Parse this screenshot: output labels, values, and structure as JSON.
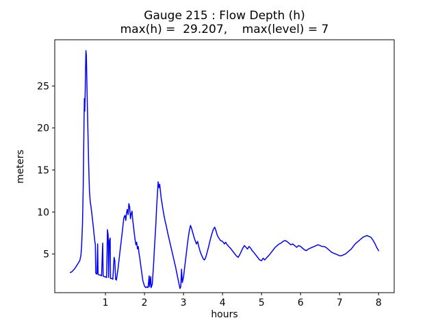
{
  "title": "Gauge 215 : Flow Depth (h)",
  "subtitle": "max(h) =  29.207,    max(level) = 7",
  "chart_data": {
    "type": "line",
    "title": "Gauge 215 : Flow Depth (h)",
    "subtitle": "max(h) =  29.207,    max(level) = 7",
    "xlabel": "hours",
    "ylabel": "meters",
    "max_h": 29.207,
    "max_level": 7,
    "xlim": [
      -0.3,
      8.4
    ],
    "ylim": [
      0.4,
      30.5
    ],
    "xticks": [
      1,
      2,
      3,
      4,
      5,
      6,
      7,
      8
    ],
    "yticks": [
      5,
      10,
      15,
      20,
      25
    ],
    "grid": false,
    "legend": "none",
    "line_color": "#0000ff",
    "axes_color": "#000000",
    "series": [
      {
        "name": "h",
        "color": "#0000ff",
        "points": [
          [
            0.1,
            2.8
          ],
          [
            0.14,
            2.9
          ],
          [
            0.18,
            3.1
          ],
          [
            0.22,
            3.3
          ],
          [
            0.26,
            3.6
          ],
          [
            0.3,
            3.9
          ],
          [
            0.34,
            4.2
          ],
          [
            0.37,
            4.8
          ],
          [
            0.39,
            6.0
          ],
          [
            0.41,
            8.5
          ],
          [
            0.43,
            13.0
          ],
          [
            0.44,
            17.0
          ],
          [
            0.45,
            21.0
          ],
          [
            0.46,
            23.5
          ],
          [
            0.47,
            22.0
          ],
          [
            0.48,
            24.5
          ],
          [
            0.49,
            27.0
          ],
          [
            0.5,
            29.207
          ],
          [
            0.51,
            28.6
          ],
          [
            0.52,
            26.5
          ],
          [
            0.53,
            24.0
          ],
          [
            0.55,
            19.5
          ],
          [
            0.57,
            15.5
          ],
          [
            0.59,
            12.5
          ],
          [
            0.61,
            11.2
          ],
          [
            0.63,
            10.6
          ],
          [
            0.65,
            9.8
          ],
          [
            0.67,
            9.0
          ],
          [
            0.69,
            8.2
          ],
          [
            0.71,
            7.2
          ],
          [
            0.73,
            6.4
          ],
          [
            0.74,
            6.2
          ],
          [
            0.75,
            2.7
          ],
          [
            0.78,
            2.6
          ],
          [
            0.8,
            6.2
          ],
          [
            0.81,
            2.6
          ],
          [
            0.84,
            2.5
          ],
          [
            0.87,
            2.5
          ],
          [
            0.9,
            2.4
          ],
          [
            0.93,
            6.3
          ],
          [
            0.94,
            2.4
          ],
          [
            0.97,
            2.3
          ],
          [
            1.0,
            2.3
          ],
          [
            1.03,
            2.2
          ],
          [
            1.05,
            7.9
          ],
          [
            1.07,
            7.2
          ],
          [
            1.08,
            2.2
          ],
          [
            1.1,
            6.6
          ],
          [
            1.12,
            6.9
          ],
          [
            1.13,
            2.1
          ],
          [
            1.16,
            2.1
          ],
          [
            1.19,
            2.0
          ],
          [
            1.22,
            4.6
          ],
          [
            1.24,
            4.2
          ],
          [
            1.26,
            2.0
          ],
          [
            1.28,
            1.9
          ],
          [
            1.32,
            3.2
          ],
          [
            1.36,
            4.8
          ],
          [
            1.4,
            6.4
          ],
          [
            1.44,
            8.0
          ],
          [
            1.47,
            9.3
          ],
          [
            1.5,
            9.6
          ],
          [
            1.52,
            9.0
          ],
          [
            1.54,
            9.9
          ],
          [
            1.56,
            10.3
          ],
          [
            1.58,
            9.7
          ],
          [
            1.6,
            11.0
          ],
          [
            1.62,
            10.6
          ],
          [
            1.64,
            9.2
          ],
          [
            1.66,
            9.8
          ],
          [
            1.68,
            10.1
          ],
          [
            1.7,
            9.0
          ],
          [
            1.72,
            8.2
          ],
          [
            1.74,
            7.4
          ],
          [
            1.76,
            6.7
          ],
          [
            1.78,
            6.1
          ],
          [
            1.8,
            6.4
          ],
          [
            1.82,
            5.6
          ],
          [
            1.84,
            5.9
          ],
          [
            1.86,
            5.1
          ],
          [
            1.88,
            4.5
          ],
          [
            1.9,
            3.8
          ],
          [
            1.93,
            2.8
          ],
          [
            1.96,
            1.8
          ],
          [
            2.0,
            1.2
          ],
          [
            2.03,
            1.0
          ],
          [
            2.06,
            1.1
          ],
          [
            2.09,
            1.0
          ],
          [
            2.12,
            2.4
          ],
          [
            2.13,
            1.1
          ],
          [
            2.16,
            2.3
          ],
          [
            2.17,
            1.0
          ],
          [
            2.2,
            1.4
          ],
          [
            2.23,
            3.5
          ],
          [
            2.26,
            6.0
          ],
          [
            2.29,
            8.5
          ],
          [
            2.31,
            10.5
          ],
          [
            2.33,
            12.0
          ],
          [
            2.35,
            13.6
          ],
          [
            2.37,
            12.9
          ],
          [
            2.39,
            13.3
          ],
          [
            2.41,
            12.4
          ],
          [
            2.43,
            11.6
          ],
          [
            2.45,
            11.0
          ],
          [
            2.47,
            10.4
          ],
          [
            2.5,
            9.6
          ],
          [
            2.53,
            8.9
          ],
          [
            2.56,
            8.3
          ],
          [
            2.59,
            7.6
          ],
          [
            2.62,
            7.0
          ],
          [
            2.65,
            6.4
          ],
          [
            2.68,
            5.8
          ],
          [
            2.71,
            5.2
          ],
          [
            2.74,
            4.6
          ],
          [
            2.77,
            4.0
          ],
          [
            2.8,
            3.4
          ],
          [
            2.83,
            2.7
          ],
          [
            2.86,
            2.0
          ],
          [
            2.89,
            1.3
          ],
          [
            2.91,
            0.9
          ],
          [
            2.93,
            1.1
          ],
          [
            2.95,
            3.2
          ],
          [
            2.97,
            1.6
          ],
          [
            3.0,
            2.2
          ],
          [
            3.03,
            3.4
          ],
          [
            3.06,
            4.6
          ],
          [
            3.09,
            5.8
          ],
          [
            3.12,
            6.9
          ],
          [
            3.15,
            7.8
          ],
          [
            3.18,
            8.4
          ],
          [
            3.21,
            8.0
          ],
          [
            3.24,
            7.5
          ],
          [
            3.27,
            7.0
          ],
          [
            3.3,
            6.6
          ],
          [
            3.33,
            6.2
          ],
          [
            3.36,
            6.5
          ],
          [
            3.39,
            5.9
          ],
          [
            3.42,
            5.4
          ],
          [
            3.45,
            5.0
          ],
          [
            3.48,
            4.7
          ],
          [
            3.51,
            4.4
          ],
          [
            3.54,
            4.3
          ],
          [
            3.57,
            4.6
          ],
          [
            3.6,
            5.1
          ],
          [
            3.64,
            5.8
          ],
          [
            3.68,
            6.6
          ],
          [
            3.72,
            7.3
          ],
          [
            3.76,
            7.9
          ],
          [
            3.8,
            8.2
          ],
          [
            3.83,
            7.8
          ],
          [
            3.86,
            7.3
          ],
          [
            3.89,
            7.0
          ],
          [
            3.92,
            6.8
          ],
          [
            3.95,
            6.6
          ],
          [
            4.0,
            6.5
          ],
          [
            4.05,
            6.2
          ],
          [
            4.08,
            6.4
          ],
          [
            4.12,
            6.1
          ],
          [
            4.16,
            5.9
          ],
          [
            4.2,
            5.7
          ],
          [
            4.25,
            5.4
          ],
          [
            4.3,
            5.1
          ],
          [
            4.35,
            4.8
          ],
          [
            4.4,
            4.6
          ],
          [
            4.44,
            4.9
          ],
          [
            4.48,
            5.3
          ],
          [
            4.52,
            5.7
          ],
          [
            4.56,
            6.0
          ],
          [
            4.6,
            5.8
          ],
          [
            4.64,
            5.6
          ],
          [
            4.68,
            5.9
          ],
          [
            4.72,
            5.7
          ],
          [
            4.76,
            5.4
          ],
          [
            4.8,
            5.2
          ],
          [
            4.85,
            4.9
          ],
          [
            4.9,
            4.6
          ],
          [
            4.95,
            4.3
          ],
          [
            5.0,
            4.2
          ],
          [
            5.04,
            4.5
          ],
          [
            5.08,
            4.3
          ],
          [
            5.12,
            4.5
          ],
          [
            5.16,
            4.7
          ],
          [
            5.2,
            4.9
          ],
          [
            5.25,
            5.2
          ],
          [
            5.3,
            5.5
          ],
          [
            5.35,
            5.8
          ],
          [
            5.4,
            6.0
          ],
          [
            5.45,
            6.2
          ],
          [
            5.5,
            6.3
          ],
          [
            5.55,
            6.5
          ],
          [
            5.6,
            6.6
          ],
          [
            5.65,
            6.5
          ],
          [
            5.7,
            6.3
          ],
          [
            5.75,
            6.1
          ],
          [
            5.8,
            6.2
          ],
          [
            5.85,
            6.0
          ],
          [
            5.9,
            5.8
          ],
          [
            5.95,
            6.0
          ],
          [
            6.0,
            5.9
          ],
          [
            6.05,
            5.7
          ],
          [
            6.1,
            5.5
          ],
          [
            6.15,
            5.4
          ],
          [
            6.2,
            5.6
          ],
          [
            6.25,
            5.7
          ],
          [
            6.3,
            5.8
          ],
          [
            6.35,
            5.9
          ],
          [
            6.4,
            6.0
          ],
          [
            6.45,
            6.1
          ],
          [
            6.5,
            6.0
          ],
          [
            6.55,
            5.9
          ],
          [
            6.6,
            5.9
          ],
          [
            6.65,
            5.8
          ],
          [
            6.7,
            5.6
          ],
          [
            6.75,
            5.4
          ],
          [
            6.8,
            5.2
          ],
          [
            6.85,
            5.1
          ],
          [
            6.9,
            5.0
          ],
          [
            6.95,
            4.9
          ],
          [
            7.0,
            4.8
          ],
          [
            7.05,
            4.8
          ],
          [
            7.1,
            4.9
          ],
          [
            7.15,
            5.0
          ],
          [
            7.2,
            5.2
          ],
          [
            7.25,
            5.4
          ],
          [
            7.3,
            5.6
          ],
          [
            7.35,
            5.9
          ],
          [
            7.4,
            6.2
          ],
          [
            7.45,
            6.4
          ],
          [
            7.5,
            6.6
          ],
          [
            7.55,
            6.8
          ],
          [
            7.6,
            7.0
          ],
          [
            7.65,
            7.1
          ],
          [
            7.7,
            7.2
          ],
          [
            7.75,
            7.1
          ],
          [
            7.8,
            7.0
          ],
          [
            7.85,
            6.7
          ],
          [
            7.9,
            6.3
          ],
          [
            7.95,
            5.8
          ],
          [
            8.0,
            5.4
          ]
        ]
      }
    ]
  }
}
